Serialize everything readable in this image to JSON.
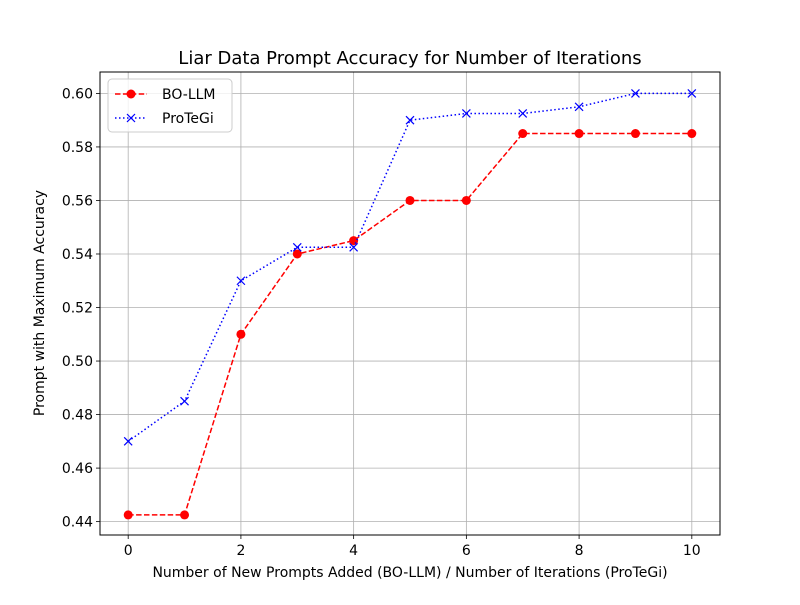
{
  "chart_data": {
    "type": "line",
    "title": "Liar Data Prompt Accuracy for Number of Iterations",
    "xlabel": "Number of New Prompts Added (BO-LLM) / Number of Iterations (ProTeGi)",
    "ylabel": "Prompt with Maximum Accuracy",
    "xlim": [
      -0.5,
      10.5
    ],
    "ylim": [
      0.435,
      0.608
    ],
    "x_ticks": [
      0,
      2,
      4,
      6,
      8,
      10
    ],
    "x_tick_labels": [
      "0",
      "2",
      "4",
      "6",
      "8",
      "10"
    ],
    "y_ticks": [
      0.44,
      0.46,
      0.48,
      0.5,
      0.52,
      0.54,
      0.56,
      0.58,
      0.6
    ],
    "y_tick_labels": [
      "0.44",
      "0.46",
      "0.48",
      "0.50",
      "0.52",
      "0.54",
      "0.56",
      "0.58",
      "0.60"
    ],
    "grid": true,
    "legend_position": "top-left",
    "x": [
      0,
      1,
      2,
      3,
      4,
      5,
      6,
      7,
      8,
      9,
      10
    ],
    "series": [
      {
        "name": "BO-LLM",
        "color": "#ff0000",
        "line_style": "dashed",
        "marker": "circle",
        "values": [
          0.4425,
          0.4425,
          0.51,
          0.54,
          0.545,
          0.56,
          0.56,
          0.585,
          0.585,
          0.585,
          0.585
        ]
      },
      {
        "name": "ProTeGi",
        "color": "#0000ff",
        "line_style": "dotted",
        "marker": "x",
        "values": [
          0.47,
          0.485,
          0.53,
          0.5425,
          0.5425,
          0.59,
          0.5925,
          0.5925,
          0.595,
          0.6,
          0.6
        ]
      }
    ]
  }
}
